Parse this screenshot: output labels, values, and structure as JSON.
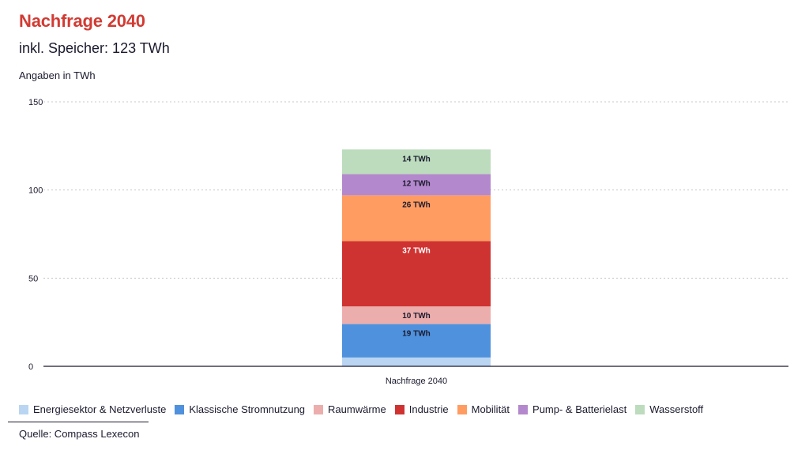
{
  "title": "Nachfrage 2040",
  "subtitle": "inkl. Speicher: 123 TWh",
  "unit_label": "Angaben in TWh",
  "source": "Quelle: Compass Lexecon",
  "chart_data": {
    "type": "bar",
    "stacked": true,
    "title": "Nachfrage 2040",
    "xlabel": "",
    "ylabel": "Angaben in TWh",
    "categories": [
      "Nachfrage 2040"
    ],
    "ylim": [
      0,
      150
    ],
    "yticks": [
      0,
      50,
      100,
      150
    ],
    "grid": true,
    "legend_position": "bottom",
    "series": [
      {
        "name": "Energiesektor & Netzverluste",
        "values": [
          5
        ],
        "color": "#b9d5f2",
        "label": ""
      },
      {
        "name": "Klassische Stromnutzung",
        "values": [
          19
        ],
        "color": "#4f91dc",
        "label": "19 TWh",
        "label_color": "#1a1a2e"
      },
      {
        "name": "Raumwärme",
        "values": [
          10
        ],
        "color": "#ecaeac",
        "label": "10 TWh",
        "label_color": "#1a1a2e"
      },
      {
        "name": "Industrie",
        "values": [
          37
        ],
        "color": "#cf3331",
        "label": "37 TWh",
        "label_color": "#ffffff"
      },
      {
        "name": "Mobilität",
        "values": [
          26
        ],
        "color": "#ff9c62",
        "label": "26 TWh",
        "label_color": "#1a1a2e"
      },
      {
        "name": "Pump- & Batterielast",
        "values": [
          12
        ],
        "color": "#b488cc",
        "label": "12 TWh",
        "label_color": "#1a1a2e"
      },
      {
        "name": "Wasserstoff",
        "values": [
          14
        ],
        "color": "#bcdcbd",
        "label": "14 TWh",
        "label_color": "#1a1a2e"
      }
    ]
  }
}
